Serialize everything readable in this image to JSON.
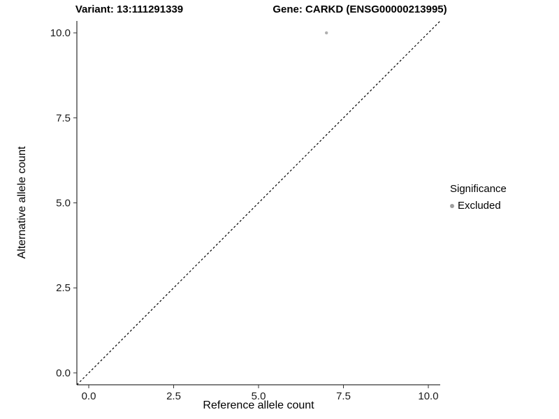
{
  "chart_data": {
    "type": "scatter",
    "title_left": "Variant: 13:111291339",
    "title_right": "Gene: CARKD (ENSG00000213995)",
    "xlabel": "Reference allele count",
    "ylabel": "Alternative allele count",
    "xlim": [
      -0.35,
      10.35
    ],
    "ylim": [
      -0.35,
      10.35
    ],
    "grid": false,
    "background": "#ffffff",
    "axis_color": "#000000",
    "xticks": [
      {
        "value": 0,
        "label": "0.0"
      },
      {
        "value": 2.5,
        "label": "2.5"
      },
      {
        "value": 5,
        "label": "5.0"
      },
      {
        "value": 7.5,
        "label": "7.5"
      },
      {
        "value": 10,
        "label": "10.0"
      }
    ],
    "yticks": [
      {
        "value": 0,
        "label": "0.0"
      },
      {
        "value": 2.5,
        "label": "2.5"
      },
      {
        "value": 5,
        "label": "5.0"
      },
      {
        "value": 7.5,
        "label": "7.5"
      },
      {
        "value": 10,
        "label": "10.0"
      }
    ],
    "points": [
      {
        "x": 7,
        "y": 10,
        "series": "Excluded",
        "color": "#b0b0b0"
      }
    ],
    "identity_line": {
      "style": "dashed",
      "slope": 1,
      "intercept": 0,
      "color": "#000000"
    },
    "legend": {
      "title": "Significance",
      "position": "right",
      "items": [
        {
          "label": "Excluded",
          "color": "#9e9e9e"
        }
      ]
    }
  }
}
